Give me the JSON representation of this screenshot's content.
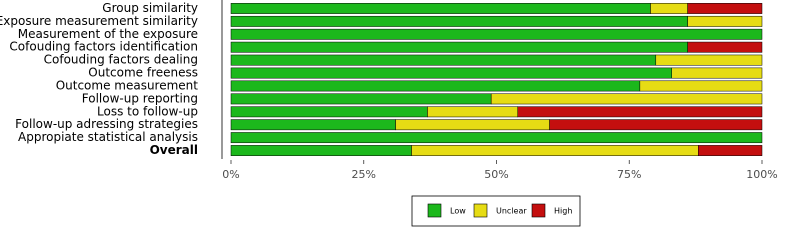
{
  "chart_data": {
    "type": "stacked-bar-horizontal",
    "categories": [
      "Group similarity",
      "Exposure measurement similarity",
      "Measurement of the exposure",
      "Cofouding factors identification",
      "Cofouding factors dealing",
      "Outcome freeness",
      "Outcome measurement",
      "Follow-up reporting",
      "Loss to follow-up",
      "Follow-up adressing strategies",
      "Appropiate statistical analysis",
      "Overall"
    ],
    "series": [
      {
        "name": "Low",
        "color": "#1cb81c",
        "values": [
          79,
          86,
          100,
          86,
          80,
          83,
          77,
          49,
          37,
          31,
          100,
          34
        ]
      },
      {
        "name": "Unclear",
        "color": "#e6dc14",
        "values": [
          7,
          14,
          0,
          0,
          20,
          17,
          23,
          51,
          17,
          29,
          0,
          54
        ]
      },
      {
        "name": "High",
        "color": "#c40f0f",
        "values": [
          14,
          0,
          0,
          14,
          0,
          0,
          0,
          0,
          46,
          40,
          0,
          12
        ]
      }
    ],
    "xlim": [
      0,
      100
    ],
    "xticks": [
      {
        "value": 0,
        "label": "0%"
      },
      {
        "value": 25,
        "label": "25%"
      },
      {
        "value": 50,
        "label": "50%"
      },
      {
        "value": 75,
        "label": "75%"
      },
      {
        "value": 100,
        "label": "100%"
      }
    ],
    "legend": "bottom"
  }
}
